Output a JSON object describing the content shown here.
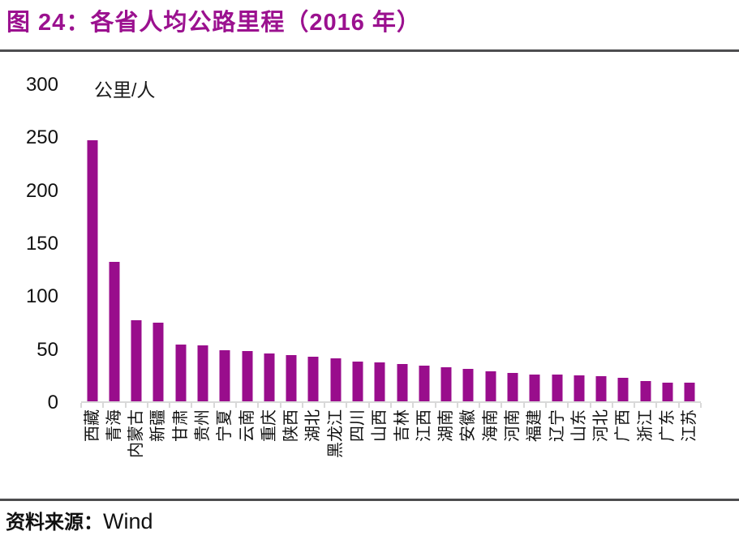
{
  "header": {
    "title": "图 24：各省人均公路里程（2016 年）"
  },
  "chart_data": {
    "type": "bar",
    "title": "各省人均公路里程（2016 年）",
    "unit_label": "公里/人",
    "categories": [
      "西藏",
      "青海",
      "内蒙古",
      "新疆",
      "甘肃",
      "贵州",
      "宁夏",
      "云南",
      "重庆",
      "陕西",
      "湖北",
      "黑龙江",
      "四川",
      "山西",
      "吉林",
      "江西",
      "湖南",
      "安徽",
      "海南",
      "河南",
      "福建",
      "辽宁",
      "山东",
      "河北",
      "广西",
      "浙江",
      "广东",
      "江苏"
    ],
    "values": [
      248,
      133,
      78,
      76,
      55,
      54,
      50,
      49,
      47,
      45,
      44,
      42,
      39,
      38,
      37,
      35,
      34,
      32,
      30,
      28,
      27,
      27,
      26,
      25,
      24,
      21,
      19,
      19
    ],
    "ylim": [
      0,
      300
    ],
    "yticks": [
      300,
      250,
      200,
      150,
      100,
      50,
      0
    ],
    "xlabel": "",
    "ylabel": "公里/人",
    "grid": false,
    "legend_position": "none",
    "bar_color": "#990d8c",
    "axis_color": "#d9d9d9",
    "title_color": "#9b118f",
    "rule_color": "#4d4d4f"
  },
  "footer": {
    "source_prefix": "资料来源：",
    "source_value": "Wind"
  }
}
